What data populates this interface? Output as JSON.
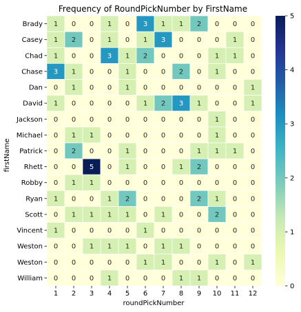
{
  "chart_data": {
    "type": "heatmap",
    "title": "Frequency of RoundPickNumber by FirstName",
    "xlabel": "roundPickNumber",
    "ylabel": "firstName",
    "x_categories": [
      "1",
      "2",
      "3",
      "4",
      "5",
      "6",
      "7",
      "8",
      "9",
      "10",
      "11",
      "12"
    ],
    "y_categories": [
      "Brady",
      "Casey",
      "Chad",
      "Chase",
      "Dan",
      "David",
      "Jackson",
      "Michael",
      "Patrick",
      "Rhett",
      "Robby",
      "Ryan",
      "Scott",
      "Vincent",
      "Weston",
      "Weston ",
      "William"
    ],
    "values": [
      [
        1,
        0,
        0,
        1,
        0,
        3,
        1,
        1,
        2,
        0,
        0,
        0
      ],
      [
        1,
        2,
        0,
        1,
        0,
        1,
        3,
        0,
        0,
        0,
        1,
        0
      ],
      [
        1,
        0,
        0,
        3,
        1,
        2,
        0,
        0,
        0,
        1,
        1,
        0
      ],
      [
        3,
        1,
        0,
        0,
        1,
        0,
        0,
        2,
        0,
        1,
        0,
        0
      ],
      [
        0,
        1,
        0,
        0,
        1,
        0,
        0,
        0,
        0,
        0,
        0,
        1
      ],
      [
        1,
        0,
        0,
        0,
        0,
        1,
        2,
        3,
        1,
        0,
        0,
        1
      ],
      [
        0,
        0,
        0,
        0,
        0,
        0,
        0,
        0,
        0,
        1,
        0,
        0
      ],
      [
        0,
        1,
        1,
        0,
        0,
        0,
        0,
        0,
        0,
        1,
        0,
        0
      ],
      [
        0,
        2,
        0,
        0,
        1,
        0,
        0,
        0,
        1,
        1,
        1,
        0
      ],
      [
        0,
        0,
        5,
        0,
        1,
        0,
        0,
        1,
        2,
        0,
        0,
        0
      ],
      [
        0,
        1,
        1,
        0,
        0,
        0,
        0,
        0,
        0,
        0,
        0,
        0
      ],
      [
        1,
        0,
        0,
        1,
        2,
        0,
        0,
        0,
        2,
        1,
        0,
        0
      ],
      [
        0,
        1,
        1,
        1,
        1,
        0,
        1,
        0,
        0,
        2,
        0,
        0
      ],
      [
        1,
        0,
        0,
        0,
        0,
        1,
        0,
        0,
        0,
        0,
        0,
        0
      ],
      [
        0,
        0,
        1,
        1,
        1,
        0,
        1,
        1,
        0,
        0,
        0,
        0
      ],
      [
        0,
        0,
        0,
        0,
        0,
        1,
        1,
        0,
        0,
        1,
        0,
        1
      ],
      [
        0,
        0,
        0,
        1,
        0,
        0,
        0,
        1,
        1,
        0,
        0,
        0
      ]
    ],
    "colorbar": {
      "range": [
        0,
        5
      ],
      "ticks": [
        0,
        1,
        2,
        3,
        4,
        5
      ],
      "colormap": [
        "#ffffd9",
        "#edf8b1",
        "#c7e9b4",
        "#7fcdbb",
        "#41b6c4",
        "#1d91c0",
        "#225ea8",
        "#253494",
        "#081d58"
      ]
    },
    "annotations": true,
    "cell_border_color": "#ffffff"
  }
}
